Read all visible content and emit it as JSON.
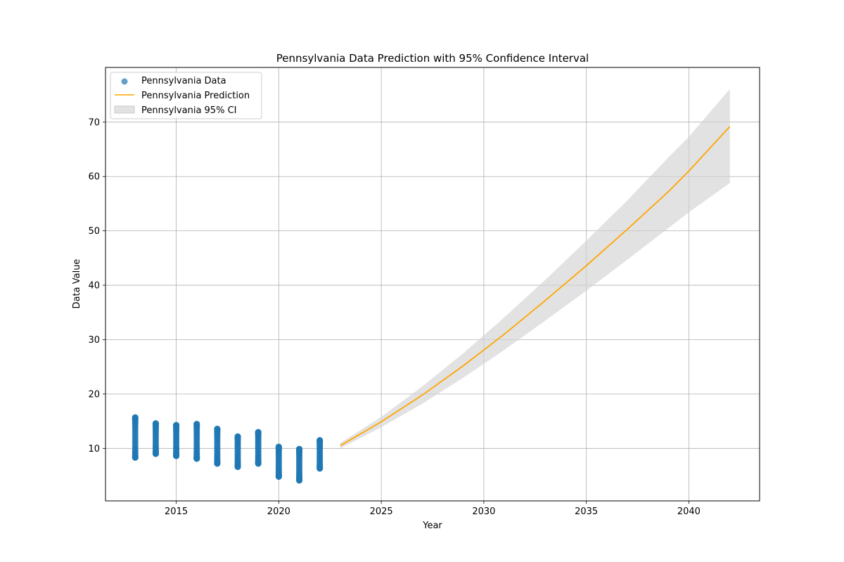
{
  "chart_data": {
    "type": "scatter",
    "title": "Pennsylvania Data Prediction with 95% Confidence Interval",
    "xlabel": "Year",
    "ylabel": "Data Value",
    "xlim": [
      2011.55,
      2043.45
    ],
    "ylim": [
      0.35,
      80.05
    ],
    "x_ticks": [
      2015,
      2020,
      2025,
      2030,
      2035,
      2040
    ],
    "y_ticks": [
      10,
      20,
      30,
      40,
      50,
      60,
      70
    ],
    "grid": true,
    "legend_position": "top-left",
    "legend": [
      {
        "label": "Pennsylvania Data",
        "kind": "marker"
      },
      {
        "label": "Pennsylvania Prediction",
        "kind": "line"
      },
      {
        "label": "Pennsylvania 95% CI",
        "kind": "patch"
      }
    ],
    "colors": {
      "data": "#1f77b4",
      "prediction": "#ffa500",
      "ci_fill": "#d3d3d3",
      "grid": "#b0b0b0"
    },
    "data_ranges": [
      {
        "year": 2013,
        "min": 8.3,
        "max": 15.7
      },
      {
        "year": 2014,
        "min": 9.0,
        "max": 14.6
      },
      {
        "year": 2015,
        "min": 8.6,
        "max": 14.3
      },
      {
        "year": 2016,
        "min": 8.1,
        "max": 14.5
      },
      {
        "year": 2017,
        "min": 7.2,
        "max": 13.6
      },
      {
        "year": 2018,
        "min": 6.6,
        "max": 12.2
      },
      {
        "year": 2019,
        "min": 7.2,
        "max": 13.0
      },
      {
        "year": 2020,
        "min": 4.8,
        "max": 10.3
      },
      {
        "year": 2021,
        "min": 4.1,
        "max": 9.9
      },
      {
        "year": 2022,
        "min": 6.3,
        "max": 11.5
      }
    ],
    "prediction": {
      "x": [
        2023,
        2025,
        2027,
        2029,
        2031,
        2033,
        2035,
        2037,
        2039,
        2040,
        2042
      ],
      "y": [
        10.5,
        14.9,
        19.8,
        25.2,
        31.0,
        37.2,
        43.6,
        50.3,
        57.2,
        61.0,
        69.2
      ]
    },
    "confidence_interval": {
      "x": [
        2023,
        2025,
        2027,
        2029,
        2031,
        2033,
        2035,
        2037,
        2039,
        2040,
        2042
      ],
      "lower": [
        10.0,
        13.9,
        18.2,
        23.0,
        28.1,
        33.5,
        39.0,
        44.7,
        50.5,
        53.4,
        58.8
      ],
      "upper": [
        11.0,
        15.8,
        21.4,
        27.5,
        34.1,
        41.0,
        48.2,
        55.6,
        63.5,
        67.3,
        76.1
      ]
    }
  }
}
